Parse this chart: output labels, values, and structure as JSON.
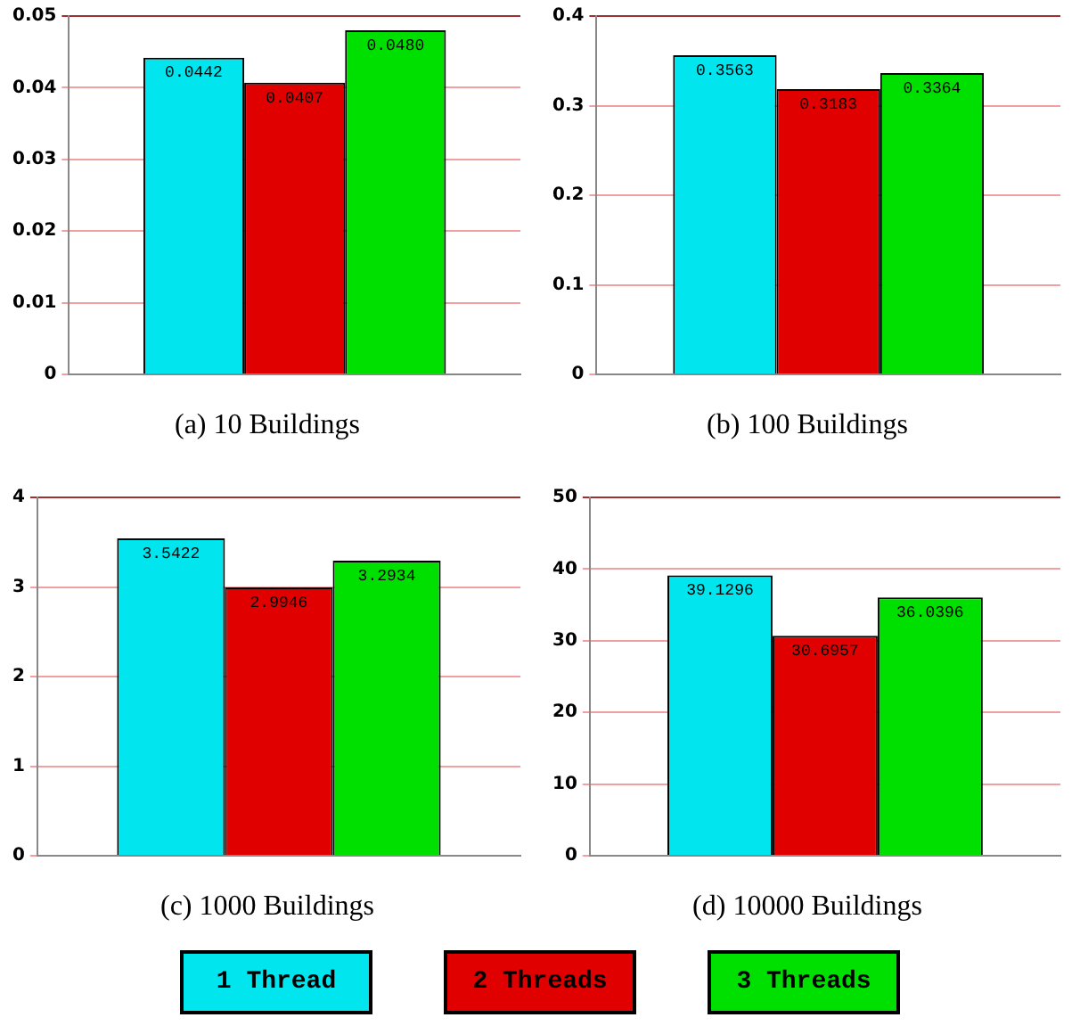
{
  "chart_data": [
    {
      "type": "bar",
      "title": "(a) 10 Buildings",
      "categories": [
        null
      ],
      "ylim": [
        0,
        0.05
      ],
      "yticks": [
        0,
        0.01,
        0.02,
        0.03,
        0.04,
        0.05
      ],
      "grid": "y",
      "legend": false,
      "series": [
        {
          "color": "#00e5ee",
          "values": [
            0.0442
          ],
          "value_labels": [
            "0.0442"
          ]
        },
        {
          "color": "#e00000",
          "values": [
            0.0407
          ],
          "value_labels": [
            "0.0407"
          ]
        },
        {
          "color": "#00e000",
          "values": [
            0.048
          ],
          "value_labels": [
            "0.0480"
          ]
        }
      ]
    },
    {
      "type": "bar",
      "title": "(b) 100 Buildings",
      "categories": [
        null
      ],
      "ylim": [
        0,
        0.4
      ],
      "yticks": [
        0,
        0.1,
        0.2,
        0.3,
        0.4
      ],
      "grid": "y",
      "legend": false,
      "series": [
        {
          "color": "#00e5ee",
          "values": [
            0.3563
          ],
          "value_labels": [
            "0.3563"
          ]
        },
        {
          "color": "#e00000",
          "values": [
            0.3183
          ],
          "value_labels": [
            "0.3183"
          ]
        },
        {
          "color": "#00e000",
          "values": [
            0.3364
          ],
          "value_labels": [
            "0.3364"
          ]
        }
      ]
    },
    {
      "type": "bar",
      "title": "(c) 1000 Buildings",
      "categories": [
        null
      ],
      "ylim": [
        0,
        4
      ],
      "yticks": [
        0,
        1,
        2,
        3,
        4
      ],
      "grid": "y",
      "legend": false,
      "series": [
        {
          "color": "#00e5ee",
          "values": [
            3.5422
          ],
          "value_labels": [
            "3.5422"
          ]
        },
        {
          "color": "#e00000",
          "values": [
            2.9946
          ],
          "value_labels": [
            "2.9946"
          ]
        },
        {
          "color": "#00e000",
          "values": [
            3.2934
          ],
          "value_labels": [
            "3.2934"
          ]
        }
      ]
    },
    {
      "type": "bar",
      "title": "(d) 10000 Buildings",
      "categories": [
        null
      ],
      "ylim": [
        0,
        50
      ],
      "yticks": [
        0,
        10,
        20,
        30,
        40,
        50
      ],
      "grid": "y",
      "legend": "bottom",
      "series": [
        {
          "name": "1 Thread",
          "color": "#00e5ee",
          "values": [
            39.1296
          ],
          "value_labels": [
            "39.1296"
          ]
        },
        {
          "name": "2 Threads",
          "color": "#e00000",
          "values": [
            30.6957
          ],
          "value_labels": [
            "30.6957"
          ]
        },
        {
          "name": "3 Threads",
          "color": "#00e000",
          "values": [
            36.0396
          ],
          "value_labels": [
            "36.0396"
          ]
        }
      ]
    }
  ]
}
